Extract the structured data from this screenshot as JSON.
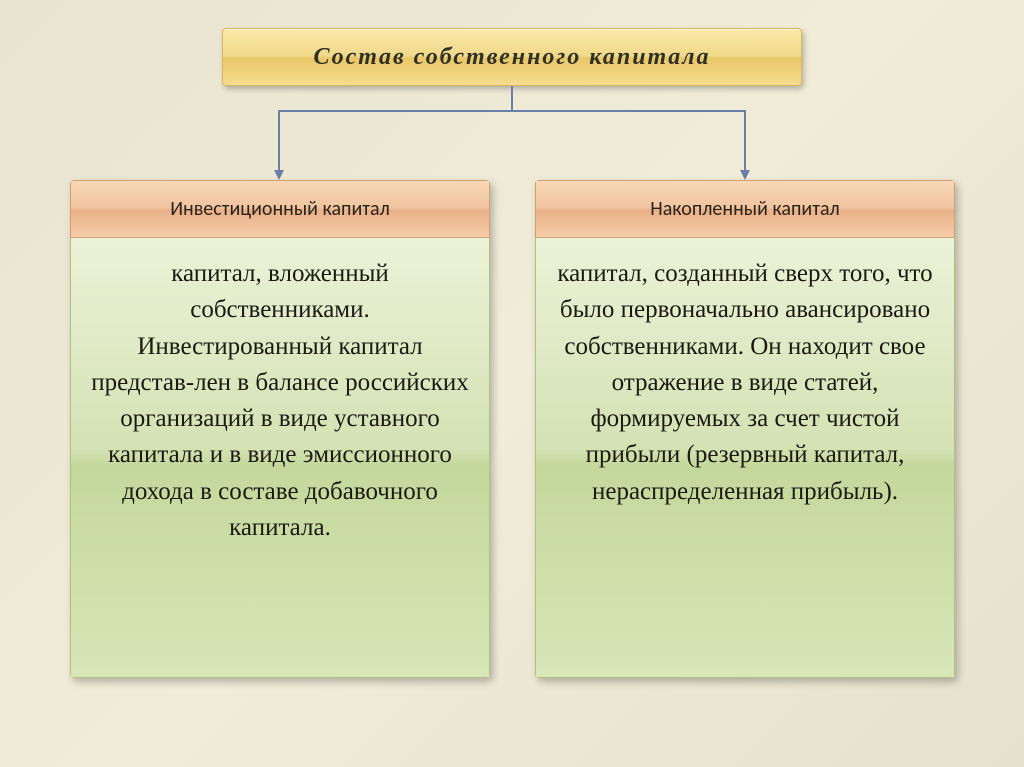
{
  "type": "tree",
  "background_gradient": [
    "#e8e4d0",
    "#f0ecd8",
    "#e5e1cc"
  ],
  "connector_color": "#6a7fa8",
  "title": {
    "text": "Состав собственного капитала",
    "font_style": "italic",
    "font_weight": "bold",
    "font_size": 24,
    "letter_spacing": 2,
    "gradient": [
      "#fae9a8",
      "#f0d98a",
      "#e8c768",
      "#f5dd90"
    ],
    "border_color": "#d4b860",
    "text_color": "#303024"
  },
  "header_style": {
    "gradient": [
      "#f8d8b8",
      "#f0c4a0",
      "#e8b088",
      "#f5cca8"
    ],
    "border_color": "#d0a070",
    "font_size": 20,
    "font_family": "Calibri",
    "text_color": "#2c2418"
  },
  "body_style": {
    "gradient": [
      "#ecf2d8",
      "#d4e2b4",
      "#c4d89c",
      "#d8e6b8"
    ],
    "border_color": "#b0c080",
    "font_size": 25,
    "font_family": "Times New Roman",
    "text_color": "#1a1a10",
    "text_align": "center"
  },
  "columns": [
    {
      "header": "Инвестиционный капитал",
      "body": "капитал, вложенный собственниками. Инвестированный капитал представ-лен в балансе российских организаций в виде уставного капитала и в виде эмиссионного дохода в составе добавочного капитала."
    },
    {
      "header": "Накопленный капитал",
      "body": "капитал, созданный сверх того, что было первоначально авансировано собственниками. Он находит свое отражение в виде статей, формируемых за счет чистой прибыли (резервный капитал, нераспределенная прибыль)."
    }
  ]
}
